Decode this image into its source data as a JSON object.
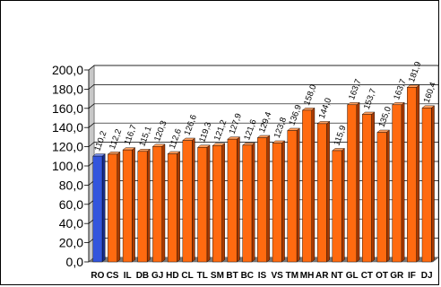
{
  "chart_data": {
    "type": "bar",
    "categories": [
      "RO",
      "CS",
      "IL",
      "DB",
      "GJ",
      "HD",
      "CL",
      "TL",
      "SM",
      "BT",
      "BC",
      "IS",
      "VS",
      "TM",
      "MH",
      "AR",
      "NT",
      "GL",
      "CT",
      "OT",
      "GR",
      "IF",
      "DJ"
    ],
    "values": [
      110.2,
      112.2,
      116.7,
      115.1,
      120.3,
      112.6,
      126.6,
      119.3,
      121.2,
      127.9,
      121.6,
      129.4,
      123.8,
      136.9,
      158.0,
      144.0,
      115.9,
      163.7,
      153.7,
      135.0,
      163.7,
      181.9,
      160.4
    ],
    "value_labels": [
      "110,2",
      "112,2",
      "116,7",
      "115,1",
      "120,3",
      "112,6",
      "126,6",
      "119,3",
      "121,2",
      "127,9",
      "121,6",
      "129,4",
      "123,8",
      "136,9",
      "158,0",
      "144,0",
      "115,9",
      "163,7",
      "153,7",
      "135,0",
      "163,7",
      "181,9",
      "160,4"
    ],
    "y_ticks": [
      "0,0",
      "20,0",
      "40,0",
      "60,0",
      "80,0",
      "100,0",
      "120,0",
      "140,0",
      "160,0",
      "180,0",
      "200,0"
    ],
    "ylim": [
      0,
      200
    ],
    "grid": true,
    "title": "",
    "xlabel": "",
    "ylabel": "",
    "colors": {
      "highlight": "#3355dd",
      "bar": "#ff6a10",
      "bar_side": "#a83a00",
      "wall": "#c8c8c8",
      "wall_dark": "#7a7a7a"
    }
  }
}
